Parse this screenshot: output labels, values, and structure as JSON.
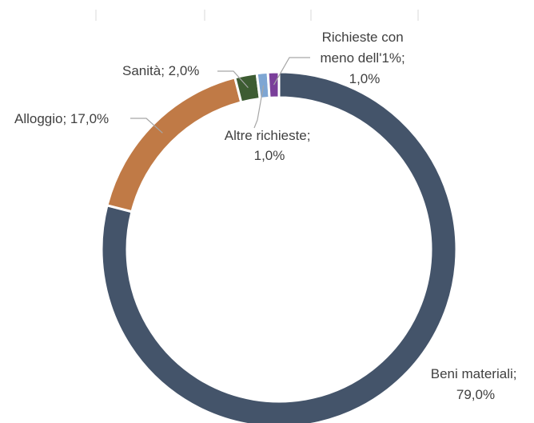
{
  "chart_data": {
    "type": "pie",
    "subtype": "donut",
    "title": "",
    "legend": "none",
    "series": [
      {
        "categories": [
          "Beni materiali",
          "Alloggio",
          "Sanità",
          "Altre richieste",
          "Richieste con meno dell'1%"
        ],
        "values": [
          79.0,
          17.0,
          2.0,
          1.0,
          1.0
        ],
        "colors": [
          "#44546a",
          "#c07a46",
          "#3d5c32",
          "#7ea6d3",
          "#7a3f9a"
        ]
      }
    ],
    "labels": [
      {
        "category": "Beni materiali",
        "lines": [
          "Beni materiali;",
          "79,0%"
        ]
      },
      {
        "category": "Alloggio",
        "lines": [
          "Alloggio; 17,0%"
        ]
      },
      {
        "category": "Sanità",
        "lines": [
          "Sanità; 2,0%"
        ]
      },
      {
        "category": "Altre richieste",
        "lines": [
          "Altre richieste;",
          "1,0%"
        ]
      },
      {
        "category": "Richieste con meno dell'1%",
        "lines": [
          "Richieste con",
          "meno dell'1%;",
          "1,0%"
        ]
      }
    ]
  }
}
